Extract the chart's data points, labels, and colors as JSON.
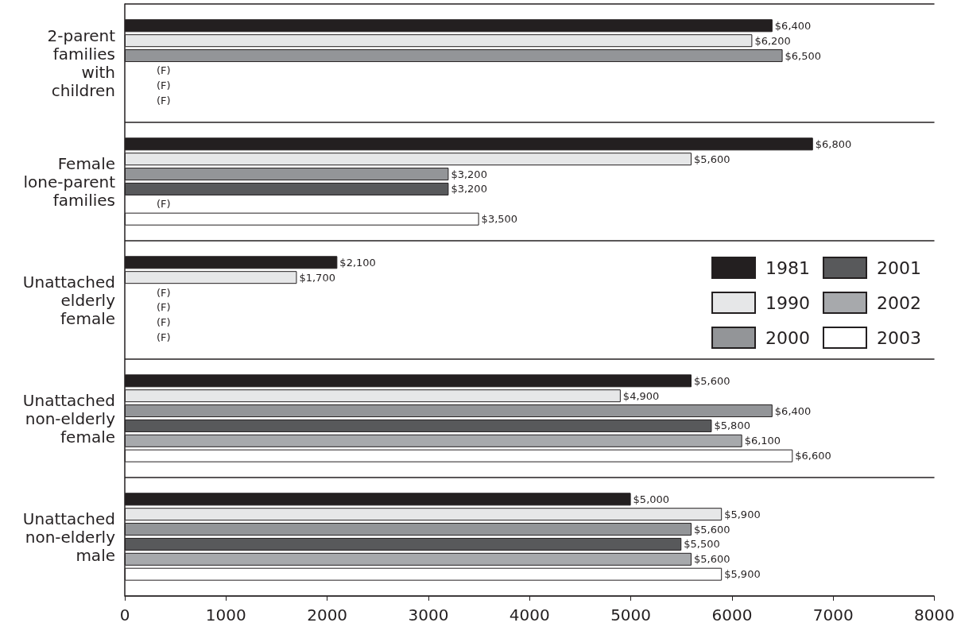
{
  "chart_data": {
    "type": "bar",
    "orientation": "horizontal",
    "categories": [
      "2-parent\nfamilies\nwith\nchildren",
      "Female\nlone-parent\nfamilies",
      "Unattached\nelderly\nfemale",
      "Unattached\nnon-elderly\nfemale",
      "Unattached\nnon-elderly\nmale"
    ],
    "series": [
      {
        "name": "1981",
        "color": "#231f20",
        "values": [
          6400,
          6800,
          2100,
          5600,
          5000
        ],
        "value_labels": [
          "$6,400",
          "$6,800",
          "$2,100",
          "$5,600",
          "$5,000"
        ]
      },
      {
        "name": "1990",
        "color": "#e6e7e8",
        "values": [
          6200,
          5600,
          1700,
          4900,
          5900
        ],
        "value_labels": [
          "$6,200",
          "$5,600",
          "$1,700",
          "$4,900",
          "$5,900"
        ]
      },
      {
        "name": "2000",
        "color": "#939598",
        "values": [
          6500,
          3200,
          null,
          6400,
          5600
        ],
        "value_labels": [
          "$6,500",
          "$3,200",
          "(F)",
          "$6,400",
          "$5,600"
        ]
      },
      {
        "name": "2001",
        "color": "#58595b",
        "values": [
          null,
          3200,
          null,
          5800,
          5500
        ],
        "value_labels": [
          "(F)",
          "$3,200",
          "(F)",
          "$5,800",
          "$5,500"
        ]
      },
      {
        "name": "2002",
        "color": "#a7a9ac",
        "values": [
          null,
          null,
          null,
          6100,
          5600
        ],
        "value_labels": [
          "(F)",
          "(F)",
          "(F)",
          "$6,100",
          "$5,600"
        ]
      },
      {
        "name": "2003",
        "color": "#ffffff",
        "values": [
          null,
          3500,
          null,
          6600,
          5900
        ],
        "value_labels": [
          "(F)",
          "$3,500",
          "(F)",
          "$6,600",
          "$5,900"
        ]
      }
    ],
    "xlim": [
      0,
      8000
    ],
    "xticks": [
      0,
      1000,
      2000,
      3000,
      4000,
      5000,
      6000,
      7000,
      8000
    ],
    "grid": "y",
    "legend": "right"
  }
}
